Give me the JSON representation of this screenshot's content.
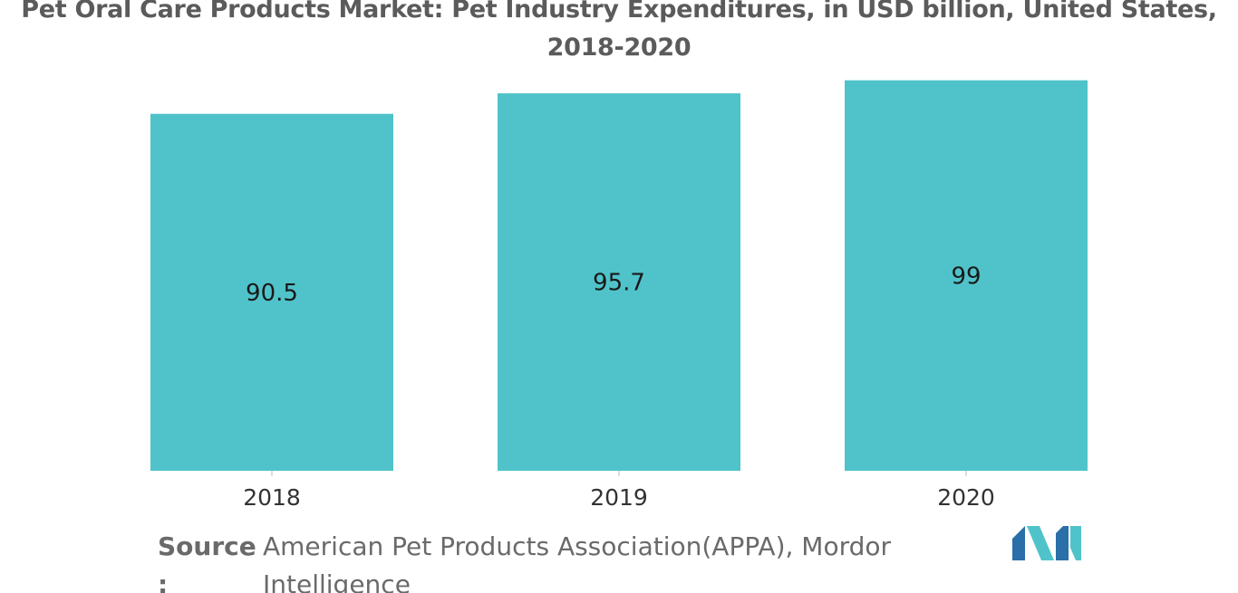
{
  "chart_data": {
    "type": "bar",
    "title": "Pet Oral Care Products Market: Pet Industry Expenditures, in USD billion, United States,\n2018-2020",
    "categories": [
      "2018",
      "2019",
      "2020"
    ],
    "values": [
      90.5,
      95.7,
      99
    ],
    "value_labels": [
      "90.5",
      "95.7",
      "99"
    ],
    "xlabel": "",
    "ylabel": "",
    "ylim": [
      0,
      99.85
    ],
    "grid": false,
    "legend": "none",
    "bar_color": "#50c3ca"
  },
  "source": {
    "label": "Source",
    "colon": ":",
    "text": "American Pet Products Association(APPA), Mordor Intelligence"
  },
  "logo": {
    "icon": "mordor-intelligence-logo",
    "colors": [
      "#2a6fa8",
      "#50c3ca"
    ]
  }
}
